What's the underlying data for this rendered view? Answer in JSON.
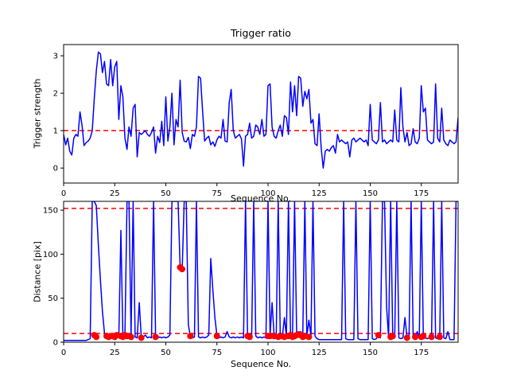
{
  "figure": {
    "background": "#ffffff",
    "axes_color": "#000000",
    "tick_color": "#000000"
  },
  "chart_data": [
    {
      "id": "trigger-ratio",
      "type": "line",
      "title": "Trigger ratio",
      "xlabel": "Sequence No.",
      "ylabel": "Trigger strength",
      "xlim": [
        0,
        193
      ],
      "ylim": [
        -0.4,
        3.3
      ],
      "xticks": [
        0,
        25,
        50,
        75,
        100,
        125,
        150,
        175
      ],
      "yticks": [
        0,
        1,
        2,
        3
      ],
      "grid": false,
      "legend": "none",
      "line_color": "#0000ff",
      "hlines": [
        {
          "y": 1.0,
          "color": "#ff0000",
          "style": "dashed"
        }
      ],
      "x_is_index": true,
      "values": [
        0.9,
        0.62,
        0.8,
        0.45,
        0.35,
        0.8,
        0.9,
        0.85,
        1.5,
        1.15,
        0.6,
        0.68,
        0.72,
        0.8,
        1.0,
        1.85,
        2.6,
        3.1,
        3.05,
        2.55,
        2.85,
        2.25,
        2.2,
        2.9,
        2.2,
        2.7,
        2.85,
        1.3,
        2.2,
        1.9,
        0.8,
        0.5,
        1.1,
        0.85,
        1.6,
        1.7,
        0.3,
        0.95,
        0.9,
        0.95,
        1.0,
        0.9,
        0.85,
        0.95,
        1.1,
        0.4,
        0.85,
        0.68,
        1.25,
        0.6,
        1.9,
        0.72,
        1.1,
        2.0,
        0.62,
        1.3,
        1.1,
        2.35,
        0.95,
        0.72,
        0.7,
        0.82,
        0.52,
        0.9,
        0.85,
        1.1,
        2.45,
        2.4,
        1.5,
        0.72,
        0.8,
        0.85,
        0.62,
        0.7,
        0.58,
        0.75,
        0.85,
        0.8,
        1.3,
        0.72,
        0.7,
        1.75,
        2.1,
        1.0,
        0.8,
        0.85,
        0.9,
        0.78,
        0.05,
        0.85,
        0.9,
        1.2,
        0.8,
        0.85,
        1.15,
        1.1,
        0.9,
        1.3,
        0.85,
        0.9,
        2.2,
        2.25,
        1.1,
        0.85,
        0.8,
        1.0,
        1.15,
        0.85,
        1.4,
        1.35,
        0.9,
        2.3,
        1.5,
        2.2,
        1.4,
        2.45,
        2.4,
        1.65,
        2.05,
        1.85,
        2.1,
        1.2,
        1.3,
        0.65,
        0.6,
        1.45,
        0.55,
        0.0,
        0.45,
        0.5,
        0.45,
        0.55,
        0.6,
        0.4,
        0.9,
        0.7,
        0.75,
        0.7,
        0.65,
        0.7,
        0.3,
        0.75,
        0.8,
        0.7,
        0.75,
        0.8,
        0.75,
        0.7,
        0.75,
        0.6,
        1.7,
        0.75,
        0.7,
        0.65,
        0.75,
        1.75,
        0.7,
        0.75,
        0.65,
        0.7,
        0.75,
        0.7,
        1.55,
        0.75,
        0.7,
        2.15,
        1.1,
        0.7,
        0.95,
        0.6,
        0.65,
        1.05,
        0.7,
        0.65,
        0.8,
        2.2,
        1.5,
        1.6,
        0.75,
        0.7,
        0.65,
        0.7,
        2.25,
        0.8,
        0.7,
        1.6,
        0.75,
        0.65,
        0.6,
        0.75,
        0.7,
        0.65,
        0.7,
        1.35
      ]
    },
    {
      "id": "distance",
      "type": "line+scatter",
      "title": "",
      "xlabel": "Sequence No.",
      "ylabel": "Distance [pix]",
      "xlim": [
        0,
        193
      ],
      "ylim": [
        0,
        160
      ],
      "xticks": [
        0,
        25,
        50,
        75,
        100,
        125,
        150,
        175
      ],
      "yticks": [
        0,
        50,
        100,
        150
      ],
      "grid": false,
      "legend": "none",
      "line_color": "#0000ff",
      "hlines": [
        {
          "y": 152,
          "color": "#ff0000",
          "style": "dashed"
        },
        {
          "y": 10,
          "color": "#ff0000",
          "style": "dashed"
        }
      ],
      "x_is_index": true,
      "values": [
        2,
        2,
        2,
        2,
        2,
        2,
        2,
        2,
        2,
        2,
        2,
        2,
        3,
        4,
        160,
        160,
        155,
        110,
        70,
        35,
        10,
        6,
        5,
        6,
        5,
        6,
        8,
        6,
        127,
        6,
        8,
        160,
        160,
        8,
        160,
        6,
        5,
        45,
        5,
        6,
        8,
        5,
        6,
        5,
        160,
        8,
        5,
        6,
        5,
        6,
        5,
        6,
        8,
        160,
        160,
        160,
        160,
        85,
        83,
        160,
        160,
        20,
        7,
        5,
        6,
        160,
        6,
        5,
        6,
        5,
        6,
        8,
        95,
        60,
        28,
        8,
        5,
        6,
        5,
        6,
        12,
        6,
        5,
        6,
        5,
        6,
        5,
        6,
        5,
        160,
        7,
        6,
        5,
        160,
        7,
        5,
        6,
        5,
        6,
        5,
        160,
        8,
        45,
        7,
        6,
        160,
        7,
        6,
        28,
        7,
        160,
        7,
        6,
        160,
        9,
        8,
        12,
        7,
        160,
        7,
        25,
        7,
        160,
        7,
        4,
        3,
        3,
        3,
        3,
        3,
        3,
        3,
        3,
        3,
        3,
        3,
        3,
        160,
        4,
        3,
        3,
        3,
        3,
        160,
        4,
        3,
        3,
        3,
        3,
        3,
        160,
        4,
        3,
        4,
        8,
        5,
        160,
        160,
        40,
        5,
        160,
        6,
        5,
        160,
        5,
        4,
        5,
        28,
        5,
        4,
        160,
        5,
        6,
        12,
        5,
        160,
        6,
        5,
        4,
        5,
        5,
        160,
        5,
        4,
        5,
        160,
        5,
        4,
        12,
        3,
        3,
        3,
        160,
        160
      ],
      "scatter": {
        "color": "#ff0000",
        "points": [
          [
            15,
            8
          ],
          [
            16,
            6
          ],
          [
            21,
            7
          ],
          [
            22,
            6
          ],
          [
            23,
            7
          ],
          [
            25,
            6
          ],
          [
            26,
            8
          ],
          [
            28,
            7
          ],
          [
            29,
            6
          ],
          [
            30,
            8
          ],
          [
            31,
            7
          ],
          [
            33,
            6
          ],
          [
            38,
            5
          ],
          [
            45,
            6
          ],
          [
            57,
            85
          ],
          [
            58,
            83
          ],
          [
            62,
            7
          ],
          [
            75,
            7
          ],
          [
            90,
            7
          ],
          [
            91,
            6
          ],
          [
            100,
            7
          ],
          [
            101,
            7
          ],
          [
            103,
            7
          ],
          [
            105,
            6
          ],
          [
            107,
            7
          ],
          [
            108,
            6
          ],
          [
            110,
            7
          ],
          [
            111,
            8
          ],
          [
            112,
            6
          ],
          [
            113,
            7
          ],
          [
            114,
            8
          ],
          [
            115,
            9
          ],
          [
            116,
            8
          ],
          [
            117,
            6
          ],
          [
            118,
            7
          ],
          [
            120,
            6
          ],
          [
            154,
            8
          ],
          [
            160,
            6
          ],
          [
            161,
            7
          ],
          [
            168,
            5
          ],
          [
            172,
            6
          ],
          [
            175,
            6
          ],
          [
            176,
            7
          ],
          [
            180,
            6
          ],
          [
            184,
            6
          ]
        ]
      }
    }
  ]
}
